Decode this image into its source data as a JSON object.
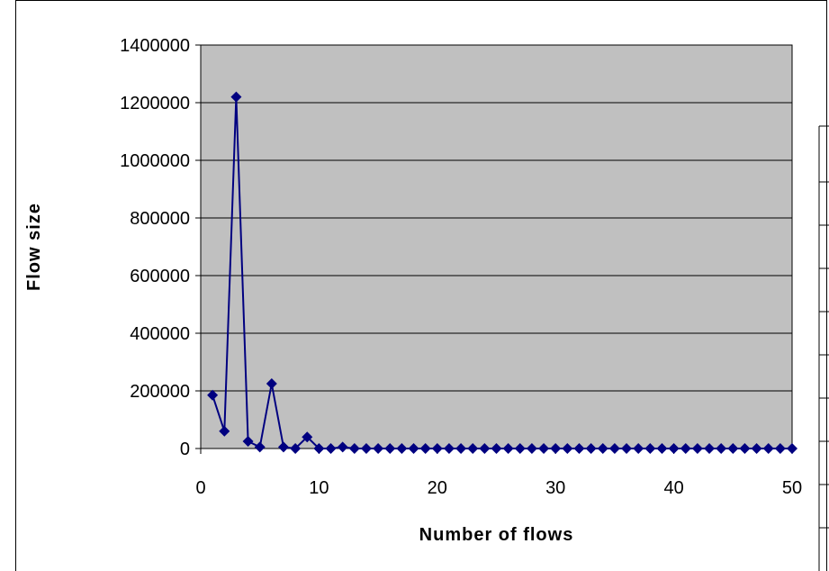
{
  "chart_data": {
    "type": "line",
    "title": "",
    "xlabel": "Number of flows",
    "ylabel": "Flow size",
    "xlim": [
      0,
      50
    ],
    "ylim": [
      0,
      1400000
    ],
    "xticks": [
      "0",
      "10",
      "20",
      "30",
      "40",
      "50"
    ],
    "yticks": [
      "0",
      "200000",
      "400000",
      "600000",
      "800000",
      "1000000",
      "1200000",
      "1400000"
    ],
    "grid": "horizontal",
    "legend": "none",
    "colors": {
      "series": "#000080",
      "plot_background": "#c0c0c0"
    },
    "x": [
      1,
      2,
      3,
      4,
      5,
      6,
      7,
      8,
      9,
      10,
      11,
      12,
      13,
      14,
      15,
      16,
      17,
      18,
      19,
      20,
      21,
      22,
      23,
      24,
      25,
      26,
      27,
      28,
      29,
      30,
      31,
      32,
      33,
      34,
      35,
      36,
      37,
      38,
      39,
      40,
      41,
      42,
      43,
      44,
      45,
      46,
      47,
      48,
      49,
      50
    ],
    "y": [
      185000,
      60000,
      1220000,
      25000,
      5000,
      225000,
      5000,
      0,
      40000,
      0,
      0,
      5000,
      0,
      0,
      0,
      0,
      0,
      0,
      0,
      0,
      0,
      0,
      0,
      0,
      0,
      0,
      0,
      0,
      0,
      0,
      0,
      0,
      0,
      0,
      0,
      0,
      0,
      0,
      0,
      0,
      0,
      0,
      0,
      0,
      0,
      0,
      0,
      0,
      0,
      0
    ]
  }
}
